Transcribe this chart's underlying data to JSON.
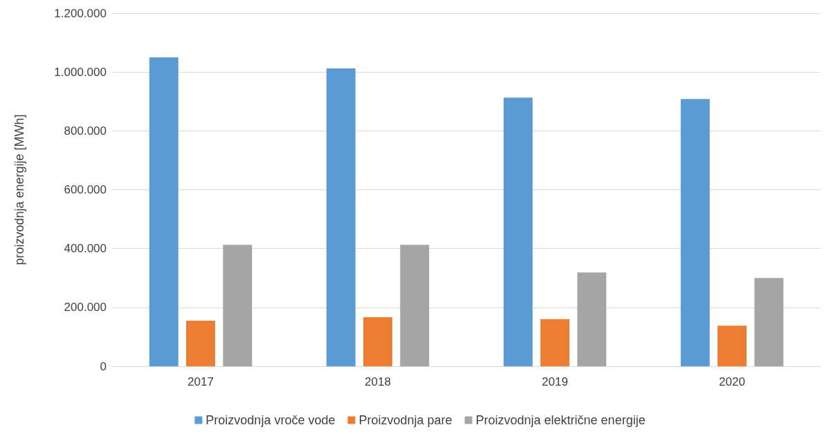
{
  "chart_data": {
    "type": "bar",
    "ylabel": "proizvodnja energije [MWh]",
    "categories": [
      "2017",
      "2018",
      "2019",
      "2020"
    ],
    "series": [
      {
        "name": "Proizvodnja vroče vode",
        "color": "#5b9bd5",
        "values": [
          1050000,
          1012000,
          913000,
          908000
        ]
      },
      {
        "name": "Proizvodnja pare",
        "color": "#ed7d31",
        "values": [
          155000,
          167000,
          160000,
          138000
        ]
      },
      {
        "name": "Proizvodnja električne energije",
        "color": "#a5a5a5",
        "values": [
          413000,
          413000,
          319000,
          300000
        ]
      }
    ],
    "ylim": [
      0,
      1200000
    ],
    "yticks": [
      0,
      {
        "value": 200000,
        "label": "200.000"
      },
      {
        "value": 400000,
        "label": "400.000"
      },
      {
        "value": 600000,
        "label": "600.000"
      },
      {
        "value": 800000,
        "label": "800.000"
      },
      {
        "value": 1000000,
        "label": "1.000.000"
      },
      {
        "value": 1200000,
        "label": "1.200.000"
      }
    ],
    "grid": "y",
    "legend": "bottom"
  }
}
